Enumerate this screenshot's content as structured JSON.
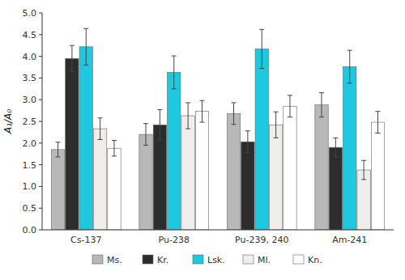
{
  "chart_data": {
    "type": "bar",
    "categories": [
      "Cs-137",
      "Pu-238",
      "Pu-239, 240",
      "Am-241"
    ],
    "series": [
      {
        "name": "Ms.",
        "color": "#b8b8b8",
        "values": [
          1.85,
          2.2,
          2.68,
          2.88
        ],
        "errors": [
          0.17,
          0.25,
          0.25,
          0.28
        ]
      },
      {
        "name": "Kr.",
        "color": "#2d2d2d",
        "values": [
          3.95,
          2.42,
          2.03,
          1.9
        ],
        "errors": [
          0.3,
          0.35,
          0.25,
          0.22
        ]
      },
      {
        "name": "Lsk.",
        "color": "#1ec8e0",
        "values": [
          4.22,
          3.63,
          4.17,
          3.76
        ],
        "errors": [
          0.42,
          0.38,
          0.45,
          0.38
        ]
      },
      {
        "name": "Ml.",
        "color": "#f0eeeb",
        "values": [
          2.33,
          2.63,
          2.42,
          1.38
        ],
        "errors": [
          0.25,
          0.3,
          0.3,
          0.22
        ]
      },
      {
        "name": "Kn.",
        "color": "#ffffff",
        "values": [
          1.88,
          2.73,
          2.85,
          2.48
        ],
        "errors": [
          0.18,
          0.25,
          0.25,
          0.25
        ]
      }
    ],
    "ylabel": "A₁/A₀",
    "ylim": [
      0.0,
      5.0
    ],
    "yticks": [
      {
        "value": 0.0,
        "label": "0.0"
      },
      0.5,
      {
        "value": 1.0,
        "label": "1.0"
      },
      1.5,
      {
        "value": 2.0,
        "label": "2.0"
      },
      2.5,
      {
        "value": 3.0,
        "label": "3.0"
      },
      3.5,
      {
        "value": 4.0,
        "label": "4.0"
      },
      4.5,
      {
        "value": 5.0,
        "label": "5.0"
      }
    ],
    "grid": false,
    "legend": "bottom"
  }
}
